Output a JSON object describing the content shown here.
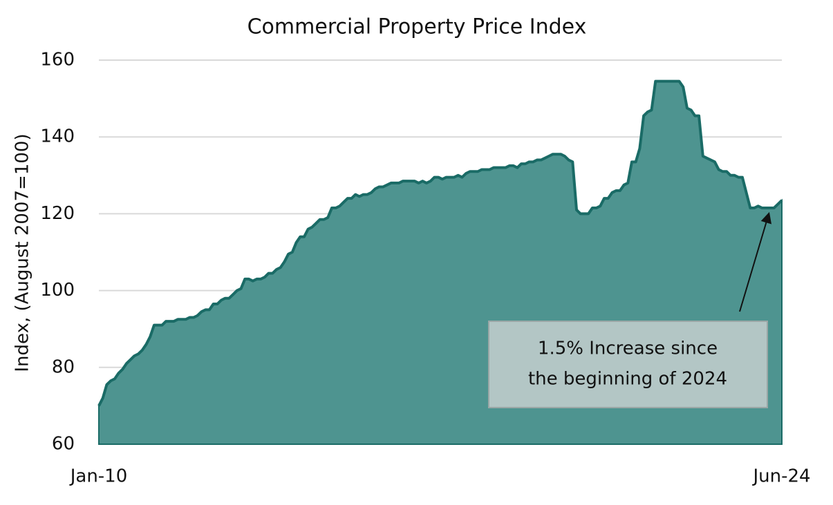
{
  "chart_data": {
    "type": "area",
    "title": "Commercial Property Price Index",
    "y_label": "Index, (August 2007=100)",
    "categories": [
      "Jan-10",
      null,
      null,
      null,
      null,
      null,
      null,
      null,
      null,
      null,
      null,
      null,
      null,
      null,
      null,
      null,
      null,
      null,
      null,
      null,
      null,
      null,
      null,
      null,
      null,
      null,
      null,
      null,
      null,
      null,
      null,
      null,
      null,
      null,
      null,
      null,
      null,
      null,
      null,
      null,
      null,
      null,
      null,
      null,
      null,
      null,
      null,
      null,
      null,
      null,
      null,
      null,
      null,
      null,
      null,
      null,
      null,
      null,
      null,
      null,
      null,
      null,
      null,
      null,
      null,
      null,
      null,
      null,
      null,
      null,
      null,
      null,
      null,
      null,
      null,
      null,
      null,
      null,
      null,
      null,
      null,
      null,
      null,
      null,
      null,
      null,
      null,
      null,
      null,
      null,
      null,
      null,
      null,
      null,
      null,
      null,
      null,
      null,
      null,
      null,
      null,
      null,
      null,
      null,
      null,
      null,
      null,
      null,
      null,
      null,
      null,
      null,
      null,
      null,
      null,
      null,
      null,
      null,
      null,
      null,
      null,
      null,
      null,
      null,
      null,
      null,
      null,
      null,
      null,
      null,
      null,
      null,
      null,
      null,
      null,
      null,
      null,
      null,
      null,
      null,
      null,
      null,
      null,
      null,
      null,
      null,
      null,
      null,
      null,
      null,
      null,
      null,
      null,
      null,
      null,
      null,
      null,
      null,
      null,
      null,
      null,
      null,
      null,
      null,
      null,
      null,
      null,
      null,
      null,
      null,
      null,
      null,
      null,
      "Jun-24"
    ],
    "values": [
      70,
      72,
      75.5,
      76.5,
      77,
      78.5,
      79.5,
      81,
      82,
      83,
      83.5,
      84.5,
      86,
      88,
      91,
      91,
      91,
      92,
      92,
      92,
      92.5,
      92.5,
      92.5,
      93,
      93,
      93.5,
      94.5,
      95,
      95,
      96.5,
      96.5,
      97.5,
      98,
      98,
      99,
      100,
      100.5,
      103,
      103,
      102.5,
      103,
      103,
      103.5,
      104.5,
      104.5,
      105.5,
      106,
      107.5,
      109.5,
      110,
      112.5,
      114,
      114,
      116,
      116.5,
      117.5,
      118.5,
      118.5,
      119,
      121.5,
      121.5,
      122,
      123,
      124,
      124,
      125,
      124.5,
      125,
      125,
      125.5,
      126.5,
      127,
      127,
      127.5,
      128,
      128,
      128,
      128.5,
      128.5,
      128.5,
      128.5,
      128,
      128.5,
      128,
      128.5,
      129.5,
      129.5,
      129,
      129.5,
      129.5,
      129.5,
      130,
      129.5,
      130.5,
      131,
      131,
      131,
      131.5,
      131.5,
      131.5,
      132,
      132,
      132,
      132,
      132.5,
      132.5,
      132,
      133,
      133,
      133.5,
      133.5,
      134,
      134,
      134.5,
      135,
      135.5,
      135.5,
      135.5,
      135,
      134,
      133.5,
      121,
      120,
      120,
      120,
      121.5,
      121.5,
      122,
      124,
      124,
      125.5,
      126,
      126,
      127.5,
      128,
      133.5,
      133.5,
      137,
      145.5,
      146.5,
      147,
      154.5,
      154.5,
      154.5,
      154.5,
      154.5,
      154.5,
      154.5,
      153,
      147.5,
      147,
      145.5,
      145.5,
      135,
      134.5,
      134,
      133.5,
      131.5,
      131,
      131,
      130,
      130,
      129.5,
      129.5,
      125.5,
      121.5,
      121.5,
      122,
      121.5,
      121.5,
      121.5,
      121.5,
      122.5,
      123.5
    ],
    "color": "#4e9490",
    "line_color": "#1a6b66",
    "ylim": [
      60,
      160
    ],
    "yticks": [
      60,
      80,
      100,
      120,
      140,
      160
    ],
    "grid": true,
    "annotation": {
      "lines": [
        "1.5% Increase since",
        "the beginning of 2024"
      ]
    }
  }
}
